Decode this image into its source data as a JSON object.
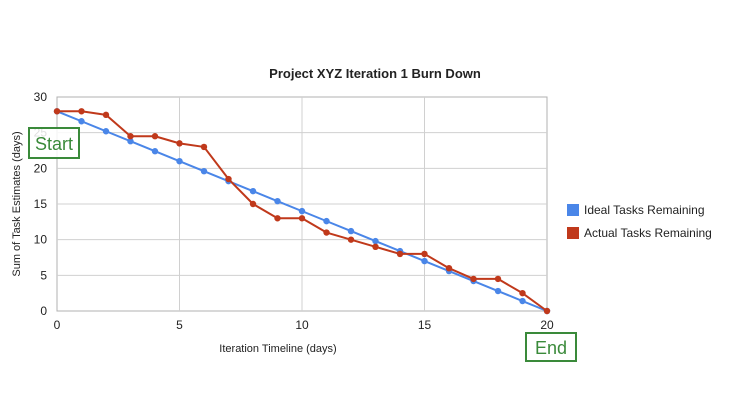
{
  "chart_data": {
    "type": "line",
    "title": "Project XYZ Iteration 1 Burn Down",
    "xlabel": "Iteration Timeline (days)",
    "ylabel": "Sum of Task Estimates (days)",
    "xlim": [
      0,
      20
    ],
    "ylim": [
      0,
      30
    ],
    "x_ticks": [
      0,
      5,
      10,
      15,
      20
    ],
    "y_ticks": [
      0,
      5,
      10,
      15,
      20,
      25,
      30
    ],
    "grid": true,
    "legend_position": "right",
    "x": [
      0,
      1,
      2,
      3,
      4,
      5,
      6,
      7,
      8,
      9,
      10,
      11,
      12,
      13,
      14,
      15,
      16,
      17,
      18,
      19,
      20
    ],
    "series": [
      {
        "name": "Ideal Tasks Remaining",
        "color": "#4a86e8",
        "values": [
          28,
          26.6,
          25.2,
          23.8,
          22.4,
          21,
          19.6,
          18.2,
          16.8,
          15.4,
          14,
          12.6,
          11.2,
          9.8,
          8.4,
          7,
          5.6,
          4.2,
          2.8,
          1.4,
          0
        ]
      },
      {
        "name": "Actual Tasks Remaining",
        "color": "#c0391b",
        "values": [
          28,
          28,
          27.5,
          24.5,
          24.5,
          23.5,
          23,
          18.5,
          15,
          13,
          13,
          11,
          10,
          9,
          8,
          8,
          6,
          4.5,
          4.5,
          2.5,
          0
        ]
      }
    ],
    "annotations": [
      {
        "text": "Start",
        "near_x": 0,
        "near_y": 23
      },
      {
        "text": "End",
        "near_x": 20,
        "near_y": -5
      }
    ]
  }
}
